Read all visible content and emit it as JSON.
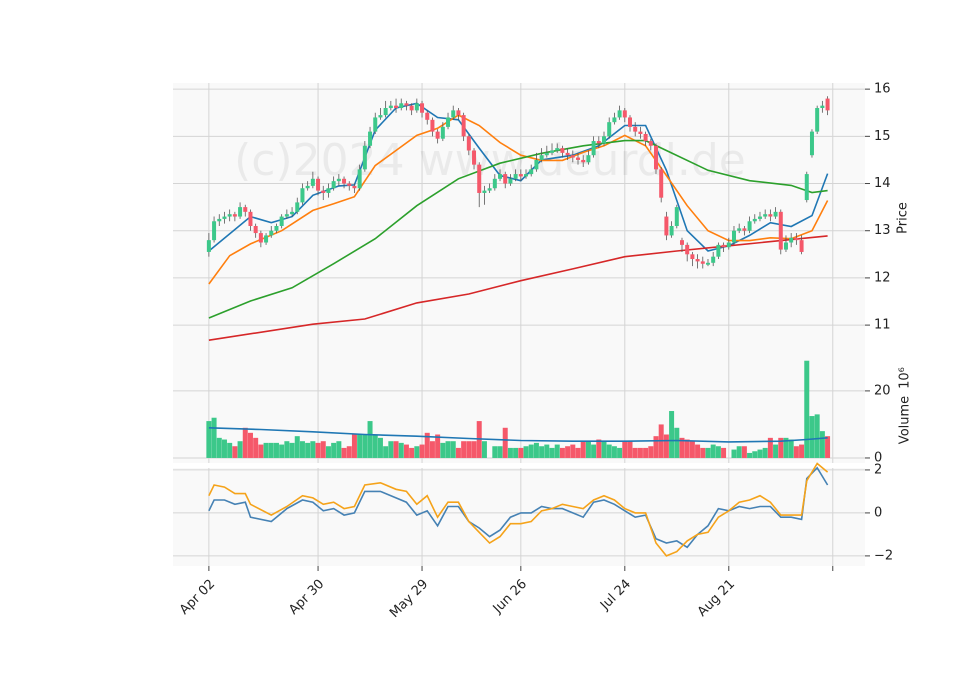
{
  "chart_data": {
    "type": "candlestick",
    "watermark": "(c)2024 www.deurdl.de",
    "xlim": [
      -6.9,
      126.2
    ],
    "xticks": [
      {
        "value": 0,
        "label": "Apr 02"
      },
      {
        "value": 21,
        "label": "Apr 30"
      },
      {
        "value": 41,
        "label": "May 29"
      },
      {
        "value": 60,
        "label": "Jun 26"
      },
      {
        "value": 80,
        "label": "Jul 24"
      },
      {
        "value": 100,
        "label": "Aug 21"
      },
      {
        "value": 120,
        "label": null
      }
    ],
    "price": {
      "ylabel": "Price",
      "ylim": [
        10.43,
        16.13
      ],
      "yticks": [
        11,
        12,
        13,
        14,
        15,
        16
      ],
      "up_color": "#3cc88a",
      "down_color": "#f5586a",
      "open": [
        12.55,
        12.8,
        13.2,
        13.25,
        13.3,
        13.35,
        13.3,
        13.5,
        13.4,
        13.1,
        12.95,
        12.75,
        12.9,
        13.0,
        13.1,
        13.3,
        13.35,
        13.4,
        13.6,
        13.9,
        13.95,
        14.1,
        13.85,
        13.8,
        13.9,
        14.05,
        14.1,
        14.0,
        13.95,
        13.9,
        14.3,
        14.8,
        15.1,
        15.4,
        15.45,
        15.6,
        15.65,
        15.6,
        15.7,
        15.65,
        15.55,
        15.7,
        15.5,
        15.35,
        15.1,
        14.95,
        15.2,
        15.4,
        15.55,
        15.45,
        15.0,
        14.7,
        14.4,
        13.8,
        13.85,
        13.9,
        14.1,
        14.2,
        14.0,
        14.1,
        14.2,
        14.15,
        14.2,
        14.3,
        14.5,
        14.6,
        14.65,
        14.7,
        14.75,
        14.65,
        14.6,
        14.55,
        14.5,
        14.45,
        14.6,
        14.9,
        14.85,
        15.0,
        15.3,
        15.4,
        15.55,
        15.4,
        15.2,
        15.1,
        15.05,
        14.9,
        14.8,
        14.3,
        13.3,
        12.9,
        13.1,
        12.8,
        12.7,
        12.5,
        12.4,
        12.35,
        12.28,
        12.32,
        12.45,
        12.7,
        12.65,
        12.75,
        13.0,
        13.05,
        13.0,
        13.2,
        13.25,
        13.3,
        13.35,
        13.3,
        13.4,
        12.6,
        12.75,
        12.85,
        12.8,
        13.65,
        14.6,
        15.1,
        15.6,
        15.8
      ],
      "high": [
        12.95,
        13.3,
        13.35,
        13.4,
        13.45,
        13.4,
        13.6,
        13.55,
        13.45,
        13.15,
        13.0,
        12.95,
        13.1,
        13.15,
        13.35,
        13.45,
        13.5,
        13.7,
        14.0,
        14.05,
        14.25,
        14.15,
        13.95,
        14.0,
        14.15,
        14.2,
        14.15,
        14.05,
        14.0,
        14.4,
        14.9,
        15.2,
        15.5,
        15.6,
        15.75,
        15.75,
        15.8,
        15.8,
        15.75,
        15.7,
        15.8,
        15.75,
        15.55,
        15.4,
        15.15,
        15.3,
        15.5,
        15.65,
        15.6,
        15.5,
        15.05,
        14.75,
        14.45,
        13.95,
        14.0,
        14.2,
        14.3,
        14.25,
        14.2,
        14.3,
        14.3,
        14.3,
        14.4,
        14.65,
        14.75,
        14.8,
        14.85,
        14.85,
        14.8,
        14.75,
        14.7,
        14.65,
        14.6,
        14.7,
        15.0,
        15.0,
        15.1,
        15.4,
        15.5,
        15.65,
        15.6,
        15.45,
        15.3,
        15.2,
        15.1,
        14.95,
        14.85,
        14.35,
        13.4,
        13.2,
        13.55,
        12.85,
        12.75,
        12.55,
        12.5,
        12.45,
        12.4,
        12.55,
        12.75,
        12.75,
        12.85,
        13.1,
        13.15,
        13.1,
        13.3,
        13.35,
        13.4,
        13.45,
        13.45,
        13.5,
        13.45,
        12.9,
        12.95,
        12.95,
        12.9,
        14.25,
        15.15,
        15.65,
        15.75,
        15.85
      ],
      "low": [
        12.45,
        12.75,
        13.1,
        13.15,
        13.2,
        13.2,
        13.25,
        13.3,
        13.0,
        12.85,
        12.65,
        12.7,
        12.85,
        12.95,
        13.05,
        13.25,
        13.3,
        13.35,
        13.55,
        13.85,
        13.9,
        13.75,
        13.65,
        13.7,
        13.85,
        13.95,
        13.9,
        13.85,
        13.8,
        13.85,
        14.25,
        14.75,
        15.05,
        15.35,
        15.4,
        15.55,
        15.5,
        15.55,
        15.55,
        15.45,
        15.5,
        15.4,
        15.25,
        15.0,
        14.85,
        14.9,
        15.15,
        15.35,
        15.35,
        14.9,
        14.6,
        14.3,
        13.5,
        13.55,
        13.8,
        13.85,
        14.05,
        13.9,
        13.95,
        14.05,
        14.05,
        14.1,
        14.15,
        14.25,
        14.45,
        14.55,
        14.6,
        14.65,
        14.55,
        14.5,
        14.45,
        14.4,
        14.35,
        14.4,
        14.55,
        14.75,
        14.8,
        14.95,
        15.25,
        15.35,
        15.3,
        15.1,
        15.0,
        14.95,
        14.8,
        14.7,
        14.2,
        13.6,
        12.8,
        12.85,
        13.05,
        12.55,
        12.35,
        12.25,
        12.2,
        12.2,
        12.25,
        12.25,
        12.4,
        12.55,
        12.6,
        12.7,
        12.95,
        12.9,
        12.95,
        13.15,
        13.2,
        13.25,
        13.2,
        13.25,
        12.5,
        12.55,
        12.65,
        12.7,
        12.5,
        13.6,
        14.55,
        15.05,
        15.5,
        15.45
      ],
      "close": [
        12.8,
        13.2,
        13.25,
        13.3,
        13.35,
        13.3,
        13.5,
        13.4,
        13.1,
        12.95,
        12.75,
        12.9,
        13.0,
        13.1,
        13.3,
        13.35,
        13.4,
        13.6,
        13.9,
        13.95,
        14.1,
        13.85,
        13.8,
        13.9,
        14.05,
        14.1,
        14.0,
        13.95,
        13.9,
        14.3,
        14.8,
        15.1,
        15.4,
        15.45,
        15.6,
        15.65,
        15.6,
        15.7,
        15.65,
        15.55,
        15.7,
        15.5,
        15.35,
        15.1,
        14.95,
        15.2,
        15.4,
        15.55,
        15.45,
        15.0,
        14.7,
        14.4,
        13.8,
        13.85,
        13.9,
        14.1,
        14.2,
        14.0,
        14.1,
        14.2,
        14.15,
        14.2,
        14.3,
        14.5,
        14.6,
        14.65,
        14.7,
        14.75,
        14.65,
        14.6,
        14.55,
        14.5,
        14.45,
        14.6,
        14.9,
        14.85,
        15.0,
        15.3,
        15.4,
        15.55,
        15.4,
        15.2,
        15.1,
        15.05,
        14.9,
        14.8,
        14.3,
        13.7,
        12.9,
        13.1,
        13.5,
        12.7,
        12.5,
        12.4,
        12.35,
        12.3,
        12.32,
        12.45,
        12.7,
        12.65,
        12.75,
        13.0,
        13.05,
        13.0,
        13.2,
        13.25,
        13.3,
        13.35,
        13.3,
        13.4,
        12.6,
        12.75,
        12.85,
        12.8,
        12.55,
        14.2,
        15.1,
        15.6,
        15.65,
        15.55
      ],
      "lines": [
        {
          "color": "#1f77b4",
          "x": [
            0,
            8,
            12,
            16,
            20,
            25,
            28,
            32,
            36,
            40,
            44,
            48,
            52,
            56,
            60,
            64,
            70,
            75,
            80,
            84,
            88,
            92,
            96,
            100,
            104,
            108,
            112,
            116,
            119
          ],
          "values": [
            12.57,
            13.3,
            13.17,
            13.3,
            13.75,
            13.95,
            13.97,
            15.13,
            15.6,
            15.7,
            15.4,
            15.35,
            14.75,
            14.17,
            14.06,
            14.5,
            14.6,
            14.8,
            15.23,
            15.23,
            14.28,
            13.0,
            12.57,
            12.68,
            12.9,
            13.17,
            13.09,
            13.32,
            14.21
          ]
        },
        {
          "color": "#ff7f0e",
          "x": [
            0,
            4,
            8,
            14,
            20,
            24,
            28,
            32,
            36,
            40,
            44,
            48,
            52,
            56,
            60,
            64,
            68,
            72,
            76,
            80,
            84,
            88,
            92,
            96,
            100,
            104,
            108,
            112,
            116,
            119
          ],
          "values": [
            11.87,
            12.47,
            12.72,
            13.0,
            13.43,
            13.57,
            13.72,
            14.38,
            14.7,
            15.02,
            15.17,
            15.45,
            15.23,
            14.87,
            14.6,
            14.49,
            14.49,
            14.66,
            14.8,
            15.02,
            14.8,
            14.17,
            13.53,
            13.0,
            12.79,
            12.79,
            12.85,
            12.83,
            13.0,
            13.64
          ]
        },
        {
          "color": "#2ca02c",
          "x": [
            0,
            8,
            16,
            24,
            32,
            40,
            48,
            56,
            64,
            72,
            80,
            84,
            88,
            96,
            104,
            112,
            116,
            119
          ],
          "values": [
            11.15,
            11.51,
            11.79,
            12.3,
            12.83,
            13.53,
            14.1,
            14.43,
            14.64,
            14.8,
            14.91,
            14.91,
            14.7,
            14.28,
            14.06,
            13.96,
            13.81,
            13.85
          ]
        },
        {
          "color": "#d62728",
          "x": [
            0,
            20,
            30,
            40,
            50,
            60,
            70,
            80,
            90,
            100,
            110,
            119
          ],
          "values": [
            10.68,
            11.02,
            11.13,
            11.47,
            11.66,
            11.94,
            12.19,
            12.45,
            12.57,
            12.68,
            12.79,
            12.89
          ]
        }
      ]
    },
    "volume": {
      "ylabel": "Volume",
      "scale_label": "10⁶",
      "ylim": [
        -1.5,
        31.6
      ],
      "yticks": [
        0,
        20
      ],
      "values": [
        11,
        12,
        6,
        5.5,
        4.5,
        3.5,
        5,
        9,
        7.5,
        6,
        4,
        4.5,
        4.5,
        4.5,
        4,
        5,
        4.5,
        6.5,
        5,
        4.5,
        5,
        4.5,
        5,
        3.5,
        4.5,
        5,
        3,
        3.5,
        7,
        7,
        7,
        11,
        7,
        6,
        3.5,
        5,
        5,
        4.5,
        4,
        3,
        3.5,
        4,
        7.5,
        5,
        7,
        4.5,
        5,
        5,
        3,
        5,
        5,
        5,
        11,
        5,
        0,
        3.5,
        3.5,
        9,
        3,
        3,
        3,
        3.5,
        4,
        4.5,
        3.5,
        4,
        3,
        4,
        3,
        3.5,
        4,
        3,
        5,
        5,
        4,
        5.5,
        5,
        4,
        3.5,
        3,
        5,
        5,
        3,
        3,
        3,
        3.5,
        6.5,
        10,
        7,
        14,
        9,
        6,
        5.5,
        5,
        4,
        3,
        3,
        4,
        3.5,
        3,
        0,
        2.5,
        3.5,
        3.5,
        1.5,
        2,
        2.5,
        3,
        6,
        4,
        6,
        6,
        5.5,
        3.5,
        4,
        29,
        12.5,
        13,
        8,
        6.5
      ],
      "ma": {
        "color": "#1f77b4",
        "x": [
          0,
          10,
          20,
          30,
          40,
          50,
          60,
          70,
          80,
          90,
          100,
          110,
          115,
          119
        ],
        "values": [
          9,
          8.5,
          7.8,
          7,
          6.5,
          5.8,
          5.2,
          5,
          5,
          5.2,
          4.8,
          5,
          5.5,
          6
        ]
      }
    },
    "oscillator": {
      "ylim": [
        -2.47,
        2.09
      ],
      "yticks": [
        {
          "value": -2,
          "label": "−2"
        },
        0,
        2
      ],
      "series": [
        {
          "color": "#4682b4",
          "x": [
            0,
            1,
            3,
            5,
            7,
            8,
            12,
            15,
            18,
            20,
            22,
            24,
            26,
            28,
            30,
            33,
            36,
            38,
            40,
            42,
            44,
            46,
            48,
            50,
            52,
            54,
            56,
            58,
            60,
            62,
            64,
            66,
            68,
            70,
            72,
            74,
            76,
            78,
            80,
            82,
            84,
            86,
            88,
            90,
            92,
            94,
            96,
            98,
            100,
            102,
            104,
            106,
            108,
            110,
            112,
            114,
            115,
            117,
            119
          ],
          "values": [
            0.1,
            0.6,
            0.6,
            0.4,
            0.5,
            -0.2,
            -0.4,
            0.2,
            0.6,
            0.5,
            0.1,
            0.2,
            -0.1,
            0.0,
            1.0,
            1.0,
            0.7,
            0.5,
            -0.1,
            0.1,
            -0.6,
            0.3,
            0.3,
            -0.4,
            -0.7,
            -1.1,
            -0.8,
            -0.2,
            0.0,
            0.0,
            0.3,
            0.2,
            0.2,
            0.0,
            -0.2,
            0.5,
            0.6,
            0.4,
            0.1,
            -0.2,
            -0.1,
            -1.2,
            -1.4,
            -1.3,
            -1.6,
            -1.0,
            -0.6,
            0.2,
            0.1,
            0.3,
            0.2,
            0.3,
            0.3,
            -0.2,
            -0.2,
            -0.3,
            1.6,
            2.1,
            1.3
          ]
        },
        {
          "color": "#f5a31a",
          "x": [
            0,
            1,
            3,
            5,
            7,
            8,
            12,
            15,
            18,
            20,
            22,
            24,
            26,
            28,
            30,
            33,
            36,
            38,
            40,
            42,
            44,
            46,
            48,
            50,
            52,
            54,
            56,
            58,
            60,
            62,
            64,
            66,
            68,
            70,
            72,
            74,
            76,
            78,
            80,
            82,
            84,
            86,
            88,
            90,
            92,
            94,
            96,
            98,
            100,
            102,
            104,
            106,
            108,
            110,
            112,
            114,
            115,
            117,
            119
          ],
          "values": [
            0.8,
            1.3,
            1.2,
            0.9,
            0.9,
            0.4,
            -0.1,
            0.3,
            0.8,
            0.7,
            0.4,
            0.5,
            0.2,
            0.3,
            1.3,
            1.4,
            1.1,
            1.0,
            0.4,
            0.8,
            -0.2,
            0.5,
            0.5,
            -0.4,
            -0.9,
            -1.4,
            -1.1,
            -0.5,
            -0.5,
            -0.4,
            0.1,
            0.2,
            0.4,
            0.3,
            0.2,
            0.6,
            0.8,
            0.6,
            0.2,
            0.0,
            0.0,
            -1.4,
            -2.0,
            -1.8,
            -1.3,
            -1.0,
            -0.9,
            -0.2,
            0.1,
            0.5,
            0.6,
            0.8,
            0.5,
            -0.1,
            -0.1,
            -0.1,
            1.5,
            2.3,
            1.9
          ]
        }
      ]
    }
  }
}
